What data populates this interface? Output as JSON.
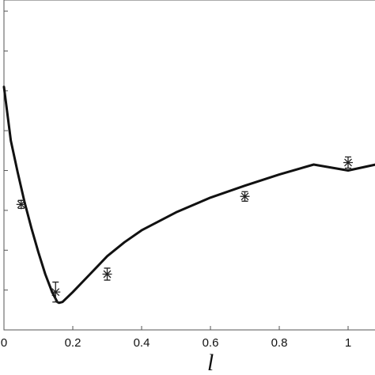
{
  "chart_data": {
    "type": "line",
    "xlabel": "l",
    "ylabel": "",
    "title": "",
    "xlim": [
      0,
      1.08
    ],
    "ylim": [
      0,
      8.2
    ],
    "x_ticks": [
      0,
      0.2,
      0.4,
      0.6,
      0.8,
      1
    ],
    "x_tick_labels": [
      "0",
      "0.2",
      "0.4",
      "0.6",
      "0.8",
      "1"
    ],
    "y_ticks": [
      1,
      2,
      3,
      4,
      5,
      6,
      7,
      8
    ],
    "grid": false,
    "series": [
      {
        "style": "solid-line",
        "x": [
          0,
          0.02,
          0.04,
          0.06,
          0.08,
          0.1,
          0.12,
          0.14,
          0.155,
          0.16,
          0.17,
          0.2,
          0.25,
          0.3,
          0.35,
          0.4,
          0.5,
          0.6,
          0.7,
          0.8,
          0.9,
          1.0,
          1.08
        ],
        "y": [
          6.1,
          4.75,
          3.95,
          3.2,
          2.55,
          1.95,
          1.4,
          0.95,
          0.7,
          0.68,
          0.7,
          0.95,
          1.4,
          1.85,
          2.2,
          2.5,
          2.95,
          3.32,
          3.62,
          3.9,
          4.15,
          4.0,
          4.15
        ]
      },
      {
        "style": "asterisk-markers-with-errorbars",
        "x": [
          0.05,
          0.15,
          0.3,
          0.7,
          1.0
        ],
        "y": [
          3.15,
          0.95,
          1.4,
          3.35,
          4.2
        ],
        "err": [
          0.1,
          0.25,
          0.15,
          0.12,
          0.14
        ]
      }
    ]
  }
}
